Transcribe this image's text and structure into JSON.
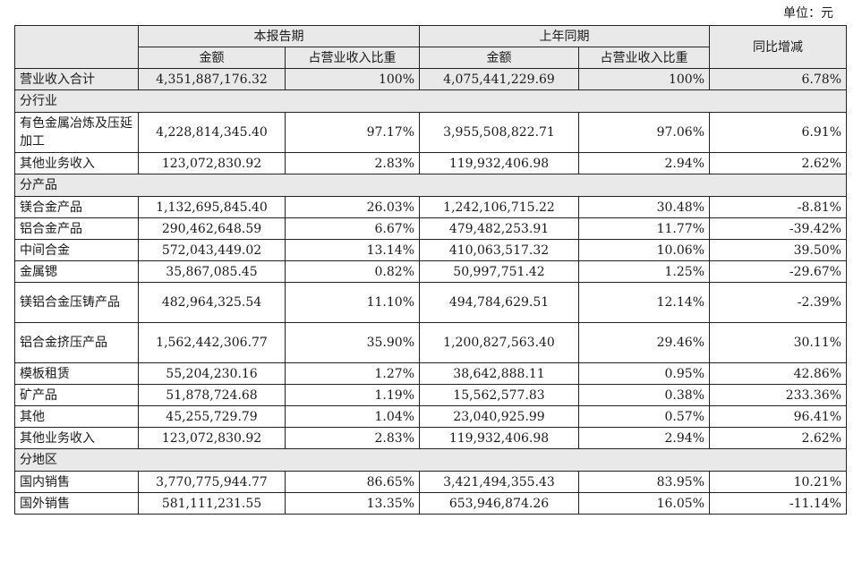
{
  "unit_label": "单位：元",
  "header": {
    "current_period": "本报告期",
    "prior_period": "上年同期",
    "yoy": "同比增减",
    "amount": "金额",
    "share": "占营业收入比重"
  },
  "total_row": {
    "label": "营业收入合计",
    "cur_amount": "4,351,887,176.32",
    "cur_share": "100%",
    "prev_amount": "4,075,441,229.69",
    "prev_share": "100%",
    "yoy": "6.78%"
  },
  "sections": [
    {
      "title": "分行业",
      "rows": [
        {
          "label": "有色金属冶炼及压延加工",
          "cur_amount": "4,228,814,345.40",
          "cur_share": "97.17%",
          "prev_amount": "3,955,508,822.71",
          "prev_share": "97.06%",
          "yoy": "6.91%"
        },
        {
          "label": "其他业务收入",
          "cur_amount": "123,072,830.92",
          "cur_share": "2.83%",
          "prev_amount": "119,932,406.98",
          "prev_share": "2.94%",
          "yoy": "2.62%"
        }
      ]
    },
    {
      "title": "分产品",
      "rows": [
        {
          "label": "镁合金产品",
          "cur_amount": "1,132,695,845.40",
          "cur_share": "26.03%",
          "prev_amount": "1,242,106,715.22",
          "prev_share": "30.48%",
          "yoy": "-8.81%"
        },
        {
          "label": "铝合金产品",
          "cur_amount": "290,462,648.59",
          "cur_share": "6.67%",
          "prev_amount": "479,482,253.91",
          "prev_share": "11.77%",
          "yoy": "-39.42%"
        },
        {
          "label": "中间合金",
          "cur_amount": "572,043,449.02",
          "cur_share": "13.14%",
          "prev_amount": "410,063,517.32",
          "prev_share": "10.06%",
          "yoy": "39.50%"
        },
        {
          "label": "金属锶",
          "cur_amount": "35,867,085.45",
          "cur_share": "0.82%",
          "prev_amount": "50,997,751.42",
          "prev_share": "1.25%",
          "yoy": "-29.67%"
        },
        {
          "label": "镁铝合金压铸产品",
          "cur_amount": "482,964,325.54",
          "cur_share": "11.10%",
          "prev_amount": "494,784,629.51",
          "prev_share": "12.14%",
          "yoy": "-2.39%"
        },
        {
          "label": "铝合金挤压产品",
          "cur_amount": "1,562,442,306.77",
          "cur_share": "35.90%",
          "prev_amount": "1,200,827,563.40",
          "prev_share": "29.46%",
          "yoy": "30.11%"
        },
        {
          "label": "模板租赁",
          "cur_amount": "55,204,230.16",
          "cur_share": "1.27%",
          "prev_amount": "38,642,888.11",
          "prev_share": "0.95%",
          "yoy": "42.86%"
        },
        {
          "label": "矿产品",
          "cur_amount": "51,878,724.68",
          "cur_share": "1.19%",
          "prev_amount": "15,562,577.83",
          "prev_share": "0.38%",
          "yoy": "233.36%"
        },
        {
          "label": "其他",
          "cur_amount": "45,255,729.79",
          "cur_share": "1.04%",
          "prev_amount": "23,040,925.99",
          "prev_share": "0.57%",
          "yoy": "96.41%"
        },
        {
          "label": "其他业务收入",
          "cur_amount": "123,072,830.92",
          "cur_share": "2.83%",
          "prev_amount": "119,932,406.98",
          "prev_share": "2.94%",
          "yoy": "2.62%"
        }
      ]
    },
    {
      "title": "分地区",
      "rows": [
        {
          "label": "国内销售",
          "cur_amount": "3,770,775,944.77",
          "cur_share": "86.65%",
          "prev_amount": "3,421,494,355.43",
          "prev_share": "83.95%",
          "yoy": "10.21%"
        },
        {
          "label": "国外销售",
          "cur_amount": "581,111,231.55",
          "cur_share": "13.35%",
          "prev_amount": "653,946,874.26",
          "prev_share": "16.05%",
          "yoy": "-11.14%"
        }
      ]
    }
  ]
}
